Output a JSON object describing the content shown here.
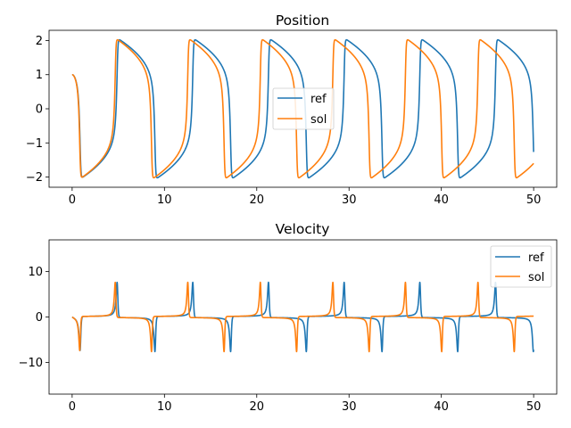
{
  "colors": {
    "ref": "#1f77b4",
    "sol": "#ff7f0e"
  },
  "chart_data": [
    {
      "type": "line",
      "title": "Position",
      "xlabel": "",
      "ylabel": "",
      "xlim": [
        -2.5,
        52.5
      ],
      "ylim": [
        -2.3,
        2.3
      ],
      "xticks": [
        0,
        10,
        20,
        30,
        40,
        50
      ],
      "yticks": [
        -2,
        -1,
        0,
        1,
        2
      ],
      "legend_position": "center",
      "series": [
        {
          "name": "ref",
          "signal": "position",
          "period": 8.2,
          "x_range": [
            0,
            50
          ]
        },
        {
          "name": "sol",
          "signal": "position",
          "period": 7.86,
          "x_range": [
            0,
            50
          ]
        }
      ]
    },
    {
      "type": "line",
      "title": "Velocity",
      "xlabel": "",
      "ylabel": "",
      "xlim": [
        -2.5,
        52.5
      ],
      "ylim": [
        -17,
        17
      ],
      "xticks": [
        0,
        10,
        20,
        30,
        40,
        50
      ],
      "yticks": [
        -10,
        0,
        10
      ],
      "legend_position": "upper right",
      "series": [
        {
          "name": "ref",
          "signal": "velocity",
          "period": 8.2,
          "x_range": [
            0,
            50
          ]
        },
        {
          "name": "sol",
          "signal": "velocity",
          "period": 7.86,
          "x_range": [
            0,
            50
          ]
        }
      ]
    }
  ]
}
